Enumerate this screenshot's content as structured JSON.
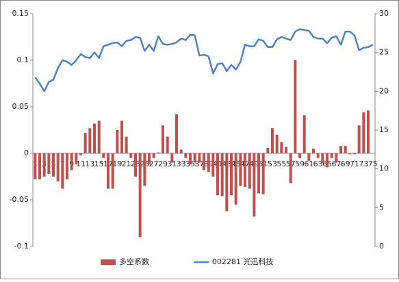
{
  "chart_data": {
    "type": "combo",
    "categories": [
      "1",
      null,
      "3",
      null,
      "5",
      null,
      "7",
      null,
      "9",
      null,
      "11",
      null,
      "13",
      null,
      "15",
      null,
      "17",
      null,
      "19",
      null,
      "21",
      null,
      "23",
      null,
      "25",
      null,
      "27",
      null,
      "29",
      null,
      "31",
      null,
      "33",
      null,
      "35",
      null,
      "37",
      null,
      "39",
      null,
      "41",
      null,
      "43",
      null,
      "45",
      null,
      "47",
      null,
      "49",
      null,
      "51",
      null,
      "53",
      null,
      "55",
      null,
      "57",
      null,
      "59",
      null,
      "61",
      null,
      "63",
      null,
      "65",
      null,
      "67",
      null,
      "69",
      null,
      "71",
      null,
      "73",
      null,
      "75"
    ],
    "series": [
      {
        "name": "多空系数",
        "type": "bar",
        "color": "#c0504d",
        "values": [
          -0.028,
          -0.028,
          -0.025,
          -0.022,
          -0.025,
          -0.03,
          -0.038,
          -0.028,
          -0.018,
          -0.012,
          -0.002,
          0.022,
          0.027,
          0.032,
          0.035,
          -0.005,
          -0.038,
          -0.038,
          0.025,
          0.035,
          0.018,
          -0.005,
          -0.025,
          -0.09,
          -0.035,
          -0.012,
          -0.005,
          0.001,
          0.03,
          0.018,
          -0.01,
          0.042,
          0.004,
          -0.005,
          -0.012,
          -0.01,
          -0.01,
          -0.018,
          -0.02,
          -0.025,
          -0.045,
          -0.046,
          -0.062,
          -0.045,
          -0.055,
          -0.035,
          -0.036,
          -0.038,
          -0.068,
          -0.043,
          -0.044,
          0.006,
          0.027,
          0.02,
          0.012,
          0.007,
          -0.032,
          0.1,
          -0.005,
          0.041,
          -0.008,
          0.005,
          -0.005,
          -0.01,
          -0.015,
          -0.005,
          -0.01,
          0.008,
          0.008,
          -0.001,
          -0.001,
          0.03,
          0.044,
          0.046,
          null
        ]
      },
      {
        "name": "002281 光迅科技",
        "type": "line",
        "axis": "y2",
        "color": "#4f81bd",
        "values": [
          21.8,
          21,
          20,
          21.2,
          21.5,
          23,
          24,
          23.8,
          23.4,
          24,
          24.8,
          24.4,
          24.3,
          25,
          24.3,
          25.8,
          26,
          26.2,
          26.3,
          25.8,
          26.5,
          26.6,
          27,
          26.9,
          25.2,
          26,
          25.2,
          27.1,
          26.1,
          26,
          26.1,
          26.3,
          26.8,
          26.6,
          27.3,
          27.2,
          24.6,
          24.7,
          24.5,
          22.3,
          23.5,
          23.6,
          22.6,
          23.4,
          22.8,
          23.8,
          26,
          25.8,
          25.8,
          26.7,
          26.5,
          25.7,
          25.7,
          26.7,
          27,
          26.8,
          26.6,
          27.7,
          28,
          27.9,
          27.8,
          27,
          26.8,
          26.8,
          26.2,
          26.9,
          27.1,
          26,
          27.7,
          27.7,
          27.2,
          25.3,
          25.6,
          25.7,
          26
        ]
      }
    ],
    "ylim": [
      -0.1,
      0.15
    ],
    "yticks": [
      -0.1,
      -0.05,
      0,
      0.05,
      0.1,
      0.15
    ],
    "y2lim": [
      0,
      30
    ],
    "y2ticks": [
      0,
      5,
      10,
      15,
      20,
      25,
      30
    ],
    "legend": "bottom"
  }
}
